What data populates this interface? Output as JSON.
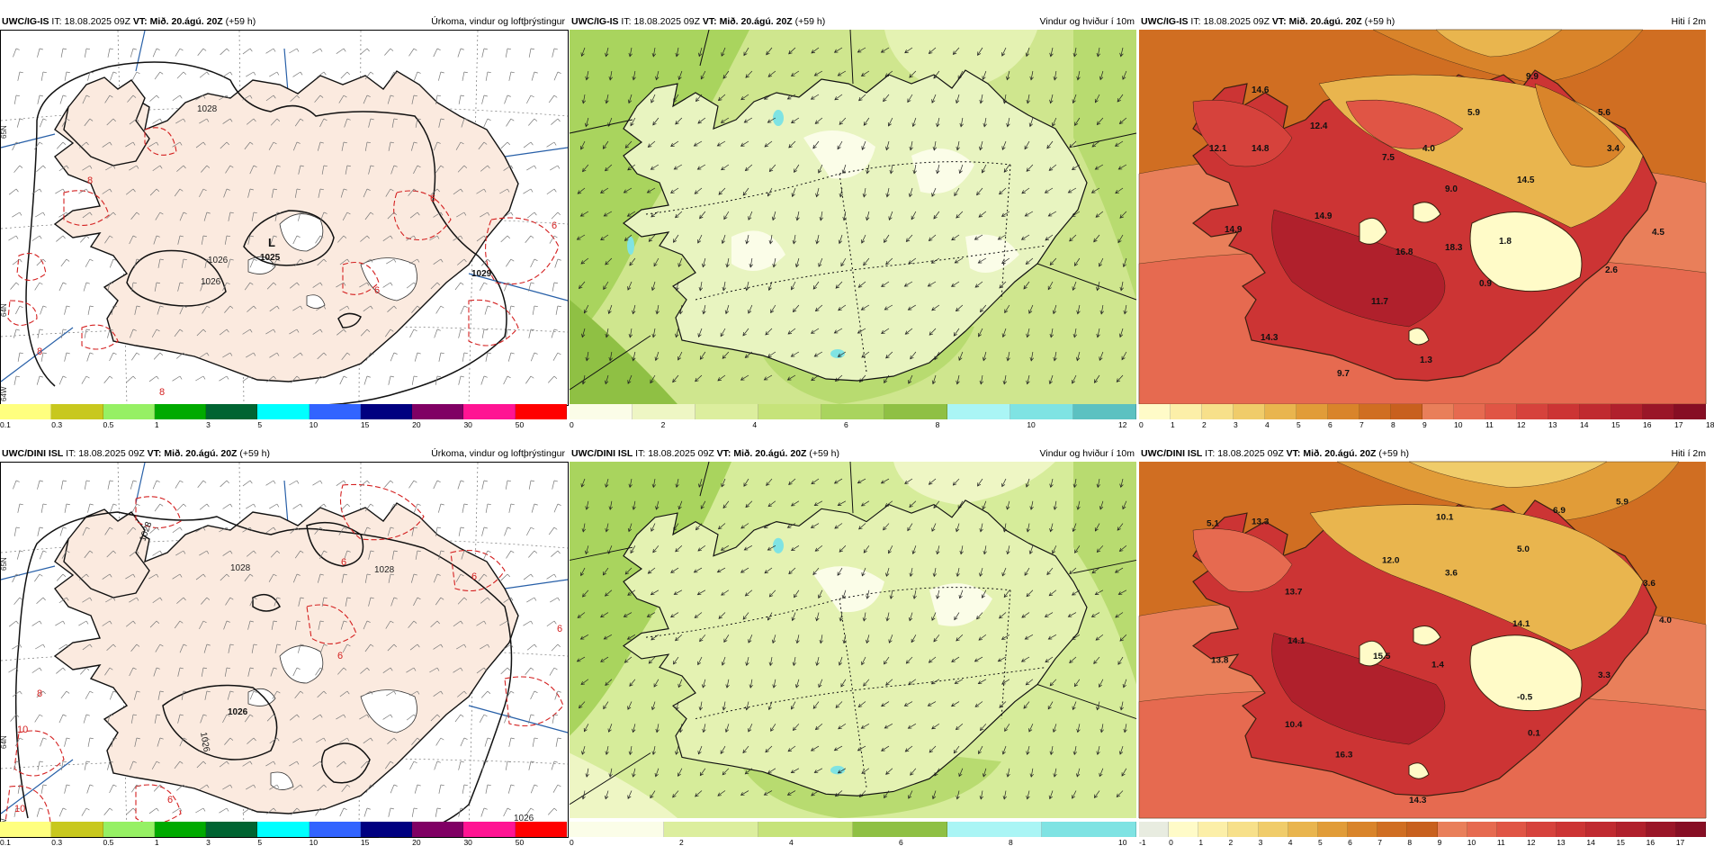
{
  "panels": [
    {
      "id": "precip-top",
      "model": "UWC/IG-IS",
      "it_label": "IT:",
      "it": "18.08.2025 09Z",
      "vt_label": "VT:",
      "vt": "Mið. 20.ágú. 20Z",
      "lead": "(+59 h)",
      "title": "Úrkoma, vindur og loftþrýstingur",
      "pressure_labels": [
        "1028",
        "1025",
        "1026",
        "1026",
        "1029"
      ],
      "low_label": "L",
      "red_labels": [
        "8",
        "6",
        "6",
        "8",
        "8",
        "6"
      ],
      "side_labels": [
        "65N",
        "64N",
        "64W"
      ]
    },
    {
      "id": "wind-top",
      "model": "UWC/IG-IS",
      "it_label": "IT:",
      "it": "18.08.2025 09Z",
      "vt_label": "VT:",
      "vt": "Mið. 20.ágú. 20Z",
      "lead": "(+59 h)",
      "title": "Vindur og hviður í 10m"
    },
    {
      "id": "temp-top",
      "model": "UWC/IG-IS",
      "it_label": "IT:",
      "it": "18.08.2025 09Z",
      "vt_label": "VT:",
      "vt": "Mið. 20.ágú. 20Z",
      "lead": "(+59 h)",
      "title": "Hiti í 2m",
      "temp_labels": [
        "14.6",
        "9.9",
        "5.9",
        "5.6",
        "12.4",
        "12.1",
        "14.8",
        "7.5",
        "4.0",
        "3.4",
        "9.0",
        "14.5",
        "14.9",
        "14.9",
        "16.8",
        "18.3",
        "1.8",
        "4.5",
        "2.6",
        "0.9",
        "11.7",
        "14.3",
        "9.7",
        "1.3"
      ]
    },
    {
      "id": "precip-bottom",
      "model": "UWC/DINI ISL",
      "it_label": "IT:",
      "it": "18.08.2025 09Z",
      "vt_label": "VT:",
      "vt": "Mið. 20.ágú. 20Z",
      "lead": "(+59 h)",
      "title": "Úrkoma, vindur og loftþrýstingur",
      "pressure_labels": [
        "1028",
        "1028",
        "1028",
        "1026",
        "1026",
        "1026"
      ],
      "red_labels": [
        "6",
        "6",
        "6",
        "10",
        "10",
        "8",
        "6",
        "6",
        "8"
      ],
      "side_labels": [
        "65N",
        "64N",
        "64W"
      ]
    },
    {
      "id": "wind-bottom",
      "model": "UWC/DINI ISL",
      "it_label": "IT:",
      "it": "18.08.2025 09Z",
      "vt_label": "VT:",
      "vt": "Mið. 20.ágú. 20Z",
      "lead": "(+59 h)",
      "title": "Vindur og hviður í 10m"
    },
    {
      "id": "temp-bottom",
      "model": "UWC/DINI ISL",
      "it_label": "IT:",
      "it": "18.08.2025 09Z",
      "vt_label": "VT:",
      "vt": "Mið. 20.ágú. 20Z",
      "lead": "(+59 h)",
      "title": "Hiti í 2m",
      "temp_labels": [
        "5.1",
        "13.3",
        "10.1",
        "6.9",
        "5.9",
        "5.0",
        "12.0",
        "3.6",
        "13.7",
        "3.6",
        "14.1",
        "4.0",
        "14.1",
        "13.8",
        "15.5",
        "1.4",
        "3.3",
        "-0.5",
        "10.4",
        "0.1",
        "16.3",
        "14.3"
      ]
    }
  ],
  "legends": {
    "precip": {
      "colors": [
        "#ffff7f",
        "#c8c81e",
        "#96f064",
        "#00aa00",
        "#006432",
        "#00ffff",
        "#3264ff",
        "#000080",
        "#800064",
        "#ff1493",
        "#ff0000"
      ],
      "labels": [
        "0.1",
        "0.3",
        "0.5",
        "1",
        "3",
        "5",
        "10",
        "15",
        "20",
        "30",
        "50"
      ]
    },
    "wind_top": {
      "colors": [
        "#fbfde8",
        "#eef6c4",
        "#dcee9e",
        "#c6e37a",
        "#a9d45e",
        "#8fc044",
        "#aaf5f5",
        "#7fe3e3",
        "#5cc1c1"
      ],
      "labels": [
        "0",
        "2",
        "4",
        "6",
        "8",
        "10",
        "12"
      ]
    },
    "wind_bottom": {
      "colors": [
        "#fbfde8",
        "#dcee9e",
        "#c6e37a",
        "#8fc044",
        "#aaf5f5",
        "#7fe3e3"
      ],
      "labels": [
        "0",
        "2",
        "4",
        "6",
        "8",
        "10"
      ]
    },
    "temp_top": {
      "colors": [
        "#fffbc8",
        "#fcefa8",
        "#f7e08a",
        "#f0cc6a",
        "#e9b54e",
        "#e19c38",
        "#d9842a",
        "#d06e22",
        "#c8601e",
        "#e97f5a",
        "#e66a50",
        "#e05545",
        "#d6423c",
        "#cc3434",
        "#c02a30",
        "#b0202c",
        "#9a1628",
        "#870e24"
      ],
      "labels": [
        "0",
        "1",
        "2",
        "3",
        "4",
        "5",
        "6",
        "7",
        "8",
        "9",
        "10",
        "11",
        "12",
        "13",
        "14",
        "15",
        "16",
        "17",
        "18"
      ]
    },
    "temp_bottom": {
      "colors": [
        "#e8ece0",
        "#fffbc8",
        "#fcefa8",
        "#f7e08a",
        "#f0cc6a",
        "#e9b54e",
        "#e19c38",
        "#d9842a",
        "#d06e22",
        "#c8601e",
        "#e97f5a",
        "#e66a50",
        "#e05545",
        "#d6423c",
        "#cc3434",
        "#c02a30",
        "#b0202c",
        "#9a1628",
        "#870e24"
      ],
      "labels": [
        "-1",
        "0",
        "1",
        "2",
        "3",
        "4",
        "5",
        "6",
        "7",
        "8",
        "9",
        "10",
        "11",
        "12",
        "13",
        "14",
        "15",
        "16",
        "17"
      ]
    }
  }
}
